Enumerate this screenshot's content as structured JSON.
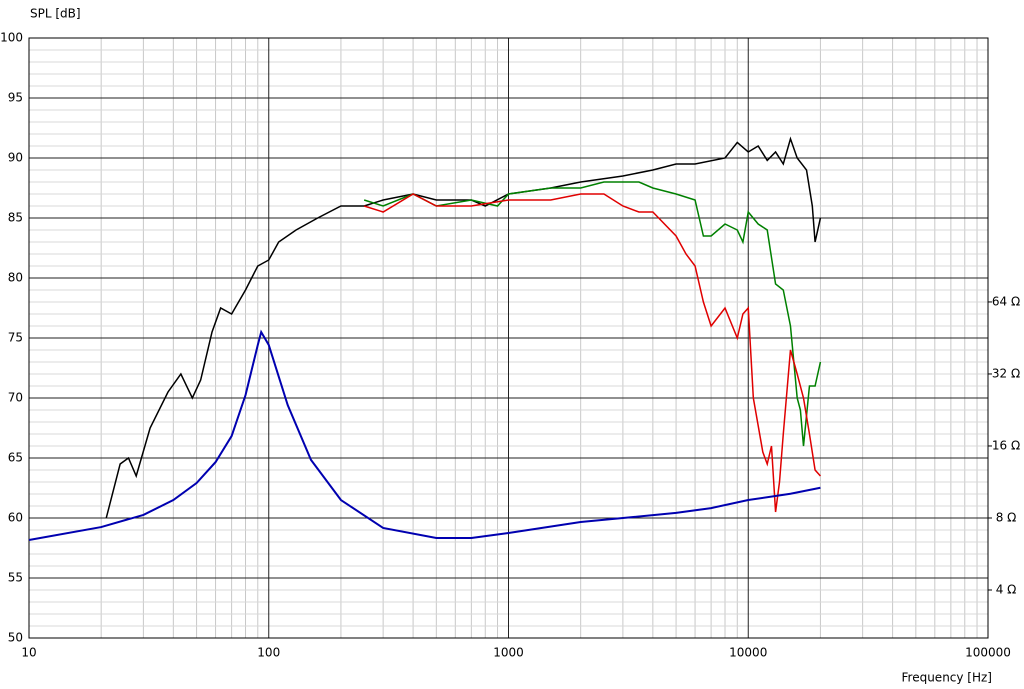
{
  "chart_data": {
    "type": "line",
    "ylabel": "SPL [dB]",
    "xlabel": "Frequency [Hz]",
    "xscale": "log",
    "xlim": [
      10,
      100000
    ],
    "xticks": [
      10,
      100,
      1000,
      10000,
      100000
    ],
    "ylim": [
      50,
      100
    ],
    "yticks": [
      50,
      55,
      60,
      65,
      70,
      75,
      80,
      85,
      90,
      95,
      100
    ],
    "y2scale": "log",
    "y2lim": [
      2.52,
      812
    ],
    "y2ticks": [
      {
        "value": 4,
        "label": "4 Ω"
      },
      {
        "value": 8,
        "label": "8 Ω"
      },
      {
        "value": 16,
        "label": "16 Ω"
      },
      {
        "value": 32,
        "label": "32 Ω"
      },
      {
        "value": 64,
        "label": "64 Ω"
      }
    ],
    "grid": true,
    "series": [
      {
        "color": "#000000",
        "x": [
          21,
          24,
          26,
          28,
          32,
          38,
          43,
          48,
          52,
          58,
          63,
          70,
          80,
          90,
          100,
          110,
          130,
          160,
          200,
          250,
          300,
          400,
          500,
          700,
          800,
          1000,
          1500,
          2000,
          3000,
          4000,
          5000,
          6000,
          8000,
          9000,
          10000,
          11000,
          12000,
          13000,
          14000,
          15000,
          16000,
          17500,
          18500,
          19000,
          20000
        ],
        "values": [
          60,
          64.5,
          65,
          63.5,
          67.5,
          70.5,
          72,
          70,
          71.5,
          75.5,
          77.5,
          77,
          79,
          81,
          81.5,
          83,
          84,
          85,
          86,
          86,
          86.5,
          87,
          86.5,
          86.5,
          86,
          87,
          87.5,
          88,
          88.5,
          89,
          89.5,
          89.5,
          90,
          91.3,
          90.5,
          91,
          89.8,
          90.5,
          89.5,
          91.6,
          90,
          89,
          86,
          83,
          85
        ]
      },
      {
        "color": "#008000",
        "x": [
          250,
          300,
          400,
          500,
          700,
          900,
          1000,
          1500,
          2000,
          2500,
          3000,
          3500,
          4000,
          5000,
          6000,
          6500,
          7000,
          8000,
          9000,
          9500,
          10000,
          11000,
          12000,
          13000,
          14000,
          15000,
          16000,
          16500,
          17000,
          18000,
          19000,
          20000
        ],
        "values": [
          86.5,
          86,
          87,
          86,
          86.5,
          86,
          87,
          87.5,
          87.5,
          88,
          88,
          88,
          87.5,
          87,
          86.5,
          83.5,
          83.5,
          84.5,
          84,
          83,
          85.5,
          84.5,
          84,
          79.5,
          79,
          76,
          70,
          69,
          66,
          71,
          71,
          73
        ]
      },
      {
        "color": "#e00000",
        "x": [
          250,
          300,
          400,
          500,
          700,
          1000,
          1500,
          2000,
          2500,
          3000,
          3500,
          4000,
          5000,
          5500,
          6000,
          6500,
          7000,
          8000,
          9000,
          9500,
          10000,
          10500,
          11500,
          12000,
          12500,
          13000,
          13500,
          14000,
          15000,
          16000,
          17000,
          18000,
          19000,
          20000
        ],
        "values": [
          86,
          85.5,
          87,
          86,
          86,
          86.5,
          86.5,
          87,
          87,
          86,
          85.5,
          85.5,
          83.5,
          82,
          81,
          78,
          76,
          77.5,
          75,
          77,
          77.5,
          70,
          65.5,
          64.5,
          66,
          60.5,
          63,
          67,
          74,
          72,
          70,
          67,
          64,
          63.5
        ]
      },
      {
        "color": "#0000b0",
        "axis": "y2",
        "x": [
          10,
          20,
          30,
          40,
          50,
          60,
          70,
          80,
          90,
          93,
          100,
          120,
          150,
          200,
          300,
          500,
          700,
          1000,
          2000,
          3000,
          5000,
          7000,
          10000,
          15000,
          20000
        ],
        "values": [
          6.47,
          7.33,
          8.24,
          9.51,
          11.2,
          13.7,
          17.6,
          26.1,
          42.3,
          47.9,
          42.3,
          23.7,
          14.0,
          9.51,
          7.27,
          6.6,
          6.6,
          6.92,
          7.7,
          8.0,
          8.4,
          8.8,
          9.51,
          10.1,
          10.7
        ]
      }
    ]
  }
}
